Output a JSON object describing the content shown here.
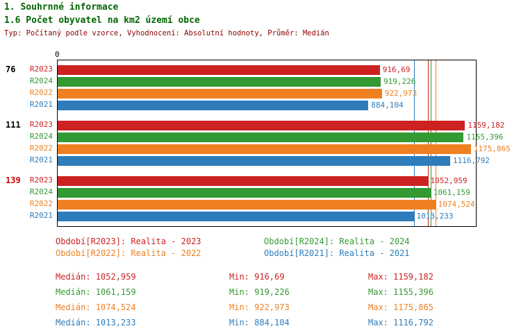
{
  "page": {
    "title1": "1. Souhrnné informace",
    "title2": "1.6 Počet obyvatel na km2 území obce",
    "subtitle": "Typ: Počítaný podle vzorce, Vyhodnocení: Absolutní hodnoty, Průměr: Medián"
  },
  "colors": {
    "title": "#006600",
    "subtitle": "#8b0000",
    "group_label": "#000000",
    "group_label_highlight": "#cc0000",
    "R2023": "#cc2222",
    "R2024": "#339933",
    "R2022": "#ef8022",
    "R2021": "#2e7cba"
  },
  "chart_data": {
    "type": "bar",
    "orientation": "horizontal",
    "title": "1.6 Počet obyvatel na km2 území obce",
    "axis_origin_label": "0",
    "xlim": [
      0,
      1190
    ],
    "grid": false,
    "series_order": [
      "R2023",
      "R2024",
      "R2022",
      "R2021"
    ],
    "groups": [
      {
        "label": "76",
        "highlight": false,
        "values": {
          "R2023": 916.69,
          "R2024": 919.226,
          "R2022": 922.973,
          "R2021": 884.104
        },
        "value_labels": {
          "R2023": "916,69",
          "R2024": "919,226",
          "R2022": "922,973",
          "R2021": "884,104"
        }
      },
      {
        "label": "111",
        "highlight": false,
        "values": {
          "R2023": 1159.182,
          "R2024": 1155.396,
          "R2022": 1175.865,
          "R2021": 1116.792
        },
        "value_labels": {
          "R2023": "1159,182",
          "R2024": "1155,396",
          "R2022": "1175,865",
          "R2021": "1116,792"
        }
      },
      {
        "label": "139",
        "highlight": true,
        "values": {
          "R2023": 1052.959,
          "R2024": 1061.159,
          "R2022": 1074.524,
          "R2021": 1013.233
        },
        "value_labels": {
          "R2023": "1052,959",
          "R2024": "1061,159",
          "R2022": "1074,524",
          "R2021": "1013,233"
        }
      }
    ],
    "medians": {
      "R2023": 1052.959,
      "R2024": 1061.159,
      "R2022": 1074.524,
      "R2021": 1013.233
    }
  },
  "legend": [
    {
      "series": "R2023",
      "label": "Období[R2023]: Realita - 2023",
      "row": 0,
      "col": 0
    },
    {
      "series": "R2024",
      "label": "Období[R2024]: Realita - 2024",
      "row": 0,
      "col": 1
    },
    {
      "series": "R2022",
      "label": "Období[R2022]: Realita - 2022",
      "row": 1,
      "col": 0
    },
    {
      "series": "R2021",
      "label": "Období[R2021]: Realita - 2021",
      "row": 1,
      "col": 1
    }
  ],
  "stats": [
    {
      "series": "R2023",
      "median": "Medián: 1052,959",
      "min": "Min: 916,69",
      "max": "Max: 1159,182"
    },
    {
      "series": "R2024",
      "median": "Medián: 1061,159",
      "min": "Min: 919,226",
      "max": "Max: 1155,396"
    },
    {
      "series": "R2022",
      "median": "Medián: 1074,524",
      "min": "Min: 922,973",
      "max": "Max: 1175,865"
    },
    {
      "series": "R2021",
      "median": "Medián: 1013,233",
      "min": "Min: 884,104",
      "max": "Max: 1116,792"
    }
  ]
}
